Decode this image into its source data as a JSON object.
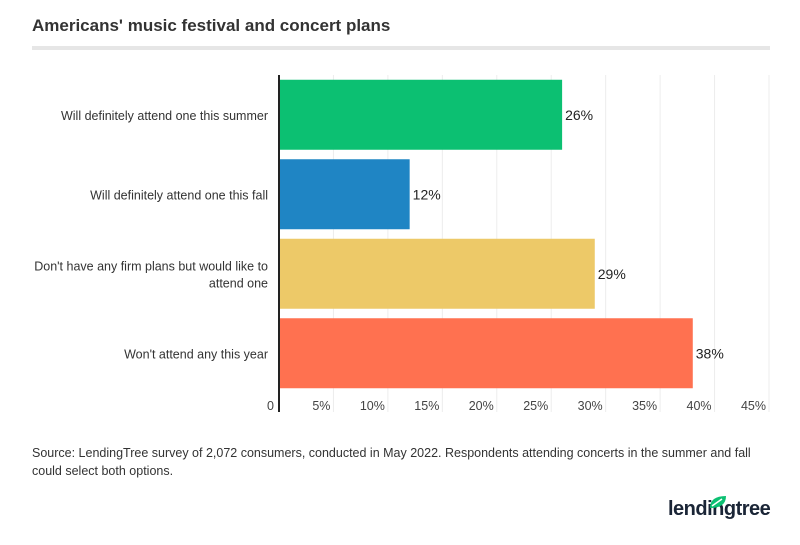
{
  "chart_data": {
    "type": "bar",
    "orientation": "horizontal",
    "title": "Americans' music festival and concert plans",
    "categories": [
      "Will definitely attend one this summer",
      "Will definitely attend one this fall",
      "Don't have any firm plans but would like to attend one",
      "Won't attend any this year"
    ],
    "values": [
      26,
      12,
      29,
      38
    ],
    "data_labels": [
      "26%",
      "12%",
      "29%",
      "38%"
    ],
    "colors": [
      "#0cc072",
      "#1f85c4",
      "#edc968",
      "#ff7150"
    ],
    "xlim": [
      0,
      45
    ],
    "x_ticks": [
      "0",
      "5%",
      "10%",
      "15%",
      "20%",
      "25%",
      "30%",
      "35%",
      "40%",
      "45%"
    ],
    "grid": true
  },
  "source": "Source: LendingTree survey of 2,072 consumers, conducted in May 2022. Respondents attending concerts in the summer and fall could select both options.",
  "logo": "lendingtree"
}
